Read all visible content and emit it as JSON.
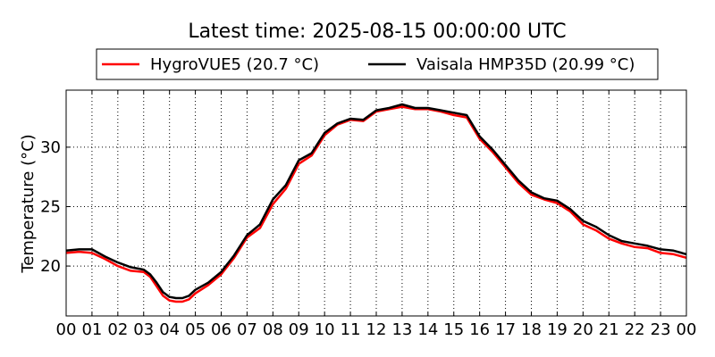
{
  "chart_data": {
    "type": "line",
    "title": "Latest time: 2025-08-15 00:00:00 UTC",
    "xlabel": "",
    "ylabel": "Temperature (°C)",
    "xlim": [
      0,
      24
    ],
    "ylim": [
      15.8,
      34.8
    ],
    "x_ticks": [
      0,
      1,
      2,
      3,
      4,
      5,
      6,
      7,
      8,
      9,
      10,
      11,
      12,
      13,
      14,
      15,
      16,
      17,
      18,
      19,
      20,
      21,
      22,
      23,
      24
    ],
    "x_tick_labels": [
      "00",
      "01",
      "02",
      "03",
      "04",
      "05",
      "06",
      "07",
      "08",
      "09",
      "10",
      "11",
      "12",
      "13",
      "14",
      "15",
      "16",
      "17",
      "18",
      "19",
      "20",
      "21",
      "22",
      "23",
      "00"
    ],
    "y_ticks": [
      20,
      25,
      30
    ],
    "y_tick_labels": [
      "20",
      "25",
      "30"
    ],
    "grid": true,
    "legend_position": "top-center",
    "series": [
      {
        "name": "HygroVUE5 (20.7 °C)",
        "color": "#ff0000",
        "x": [
          0,
          0.5,
          1,
          1.5,
          2,
          2.5,
          3,
          3.25,
          3.5,
          3.75,
          4,
          4.25,
          4.5,
          4.75,
          5,
          5.5,
          6,
          6.5,
          7,
          7.5,
          8,
          8.5,
          9,
          9.5,
          10,
          10.5,
          11,
          11.5,
          12,
          12.5,
          13,
          13.5,
          14,
          14.5,
          15,
          15.5,
          16,
          16.5,
          17,
          17.5,
          18,
          18.5,
          19,
          19.5,
          20,
          20.5,
          21,
          21.5,
          22,
          22.5,
          23,
          23.5,
          24
        ],
        "y": [
          21.1,
          21.2,
          21.1,
          20.6,
          20.0,
          19.6,
          19.5,
          19.1,
          18.3,
          17.5,
          17.1,
          17.0,
          17.0,
          17.2,
          17.7,
          18.4,
          19.3,
          20.7,
          22.4,
          23.2,
          25.2,
          26.5,
          28.6,
          29.3,
          31.0,
          31.9,
          32.3,
          32.2,
          33.0,
          33.2,
          33.4,
          33.2,
          33.2,
          33.0,
          32.7,
          32.5,
          30.7,
          29.6,
          28.3,
          27.0,
          26.0,
          25.6,
          25.3,
          24.6,
          23.5,
          23.0,
          22.3,
          21.9,
          21.6,
          21.5,
          21.1,
          21.0,
          20.7
        ]
      },
      {
        "name": "Vaisala HMP35D (20.99 °C)",
        "color": "#000000",
        "x": [
          0,
          0.5,
          1,
          1.5,
          2,
          2.5,
          3,
          3.25,
          3.5,
          3.75,
          4,
          4.25,
          4.5,
          4.75,
          5,
          5.5,
          6,
          6.5,
          7,
          7.5,
          8,
          8.5,
          9,
          9.5,
          10,
          10.5,
          11,
          11.5,
          12,
          12.5,
          13,
          13.5,
          14,
          14.5,
          15,
          15.5,
          16,
          16.5,
          17,
          17.5,
          18,
          18.5,
          19,
          19.5,
          20,
          20.5,
          21,
          21.5,
          22,
          22.5,
          23,
          23.5,
          24
        ],
        "y": [
          21.3,
          21.4,
          21.4,
          20.8,
          20.3,
          19.9,
          19.7,
          19.3,
          18.6,
          17.8,
          17.4,
          17.3,
          17.3,
          17.5,
          18.0,
          18.6,
          19.5,
          20.9,
          22.6,
          23.5,
          25.6,
          26.8,
          28.9,
          29.5,
          31.2,
          32.0,
          32.4,
          32.3,
          33.1,
          33.3,
          33.6,
          33.3,
          33.3,
          33.1,
          32.9,
          32.7,
          30.9,
          29.8,
          28.5,
          27.2,
          26.2,
          25.7,
          25.5,
          24.8,
          23.8,
          23.3,
          22.6,
          22.1,
          21.9,
          21.7,
          21.4,
          21.3,
          20.99
        ]
      }
    ]
  }
}
